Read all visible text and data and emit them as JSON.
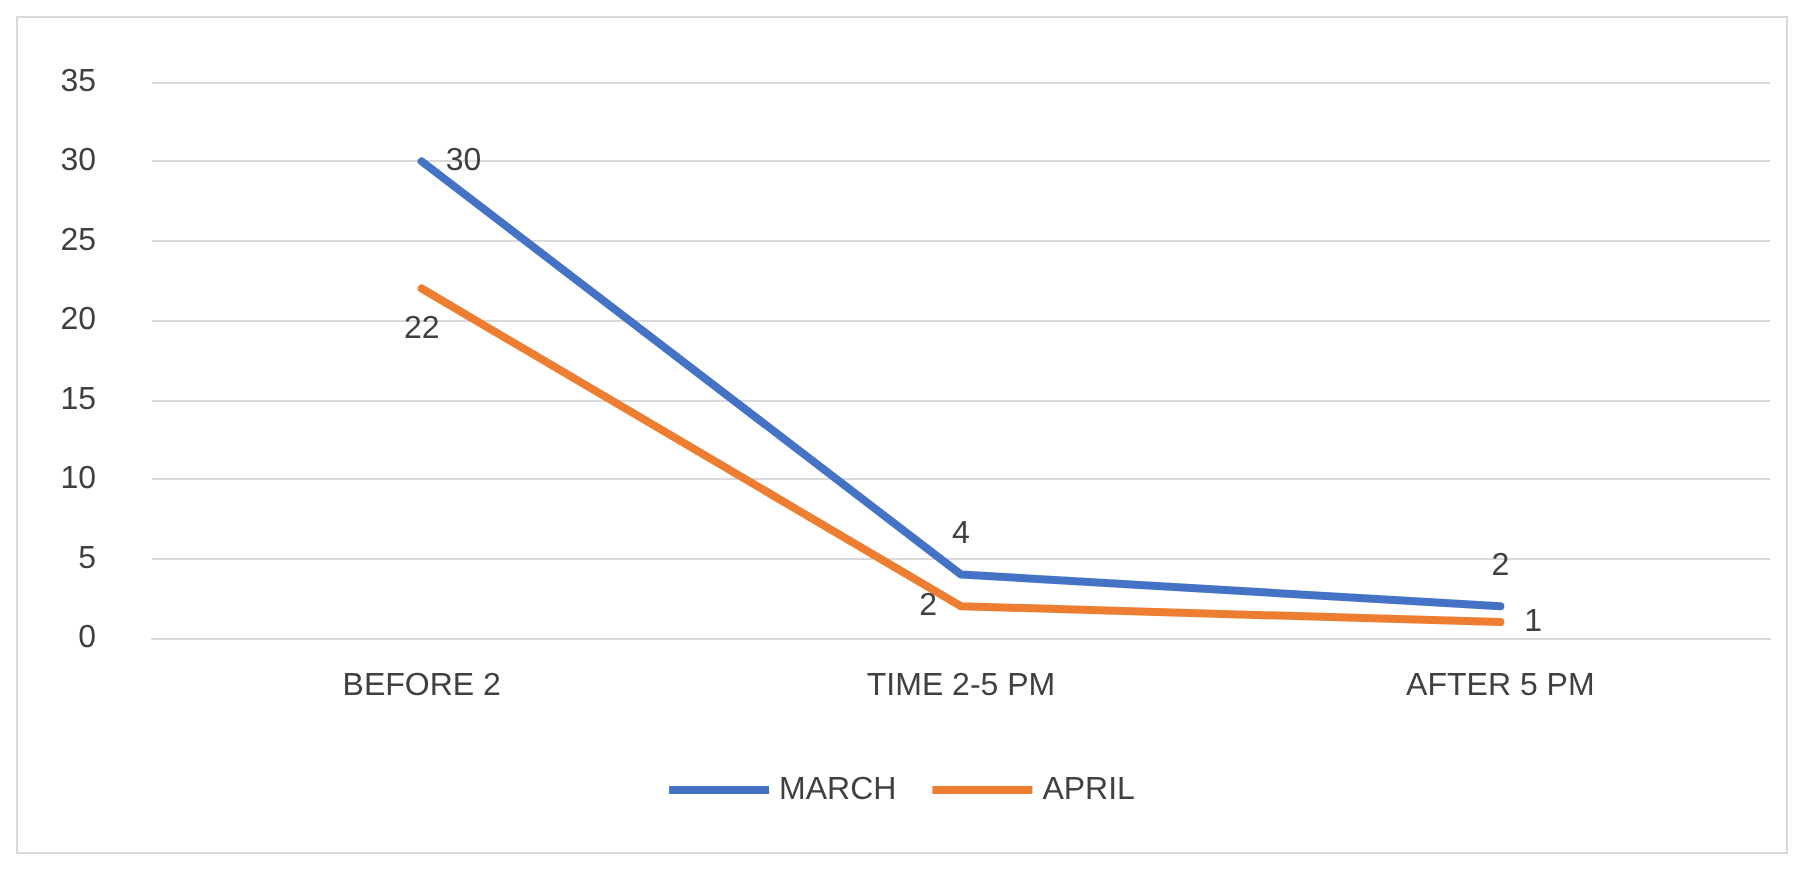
{
  "chart_data": {
    "type": "line",
    "categories": [
      "BEFORE 2",
      "TIME 2-5 PM",
      "AFTER 5 PM"
    ],
    "series": [
      {
        "name": "MARCH",
        "color": "#4472c4",
        "values": [
          30,
          4,
          2
        ]
      },
      {
        "name": "APRIL",
        "color": "#ed7d31",
        "values": [
          22,
          2,
          1
        ]
      }
    ],
    "ylim": [
      0,
      35
    ],
    "yticks": [
      0,
      5,
      10,
      15,
      20,
      25,
      30,
      35
    ],
    "grid": "y",
    "legend": "bottom",
    "data_labels": true,
    "marker": "none",
    "line_style": "solid"
  }
}
